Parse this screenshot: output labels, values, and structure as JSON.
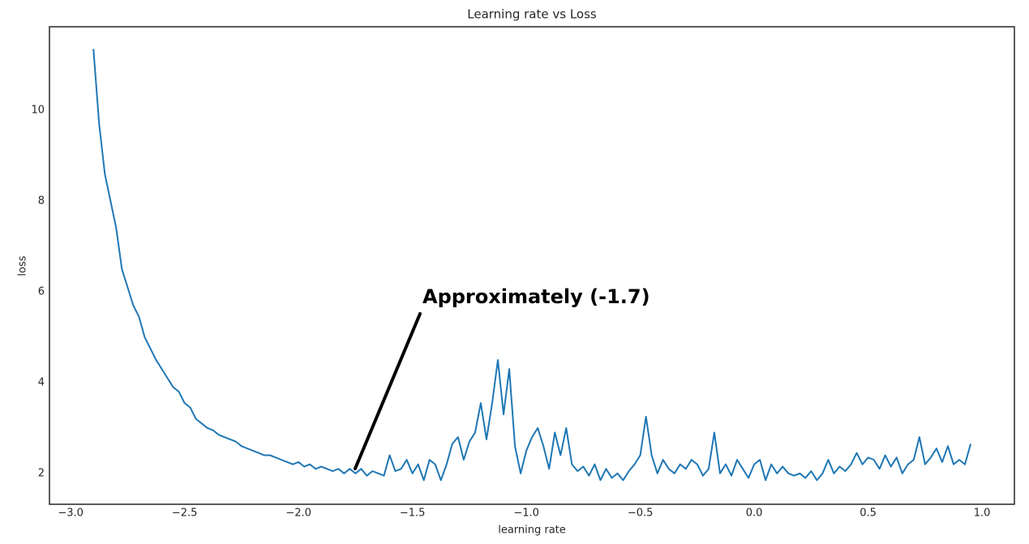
{
  "chart_data": {
    "type": "line",
    "title": "Learning rate vs Loss",
    "x_label": "learning rate",
    "y_label": "loss",
    "annotation": "Approximately (-1.7)",
    "x": [
      -2.9,
      -2.875,
      -2.85,
      -2.825,
      -2.8,
      -2.775,
      -2.75,
      -2.725,
      -2.7,
      -2.675,
      -2.65,
      -2.625,
      -2.6,
      -2.575,
      -2.55,
      -2.525,
      -2.5,
      -2.475,
      -2.45,
      -2.425,
      -2.4,
      -2.375,
      -2.35,
      -2.325,
      -2.3,
      -2.275,
      -2.25,
      -2.225,
      -2.2,
      -2.175,
      -2.15,
      -2.125,
      -2.1,
      -2.075,
      -2.05,
      -2.025,
      -2.0,
      -1.975,
      -1.95,
      -1.925,
      -1.9,
      -1.875,
      -1.85,
      -1.825,
      -1.8,
      -1.775,
      -1.75,
      -1.725,
      -1.7,
      -1.675,
      -1.65,
      -1.625,
      -1.6,
      -1.575,
      -1.55,
      -1.525,
      -1.5,
      -1.475,
      -1.45,
      -1.425,
      -1.4,
      -1.375,
      -1.35,
      -1.325,
      -1.3,
      -1.275,
      -1.25,
      -1.225,
      -1.2,
      -1.175,
      -1.15,
      -1.125,
      -1.1,
      -1.075,
      -1.05,
      -1.025,
      -1.0,
      -0.975,
      -0.95,
      -0.925,
      -0.9,
      -0.875,
      -0.85,
      -0.825,
      -0.8,
      -0.775,
      -0.75,
      -0.725,
      -0.7,
      -0.675,
      -0.65,
      -0.625,
      -0.6,
      -0.575,
      -0.55,
      -0.525,
      -0.5,
      -0.475,
      -0.45,
      -0.425,
      -0.4,
      -0.375,
      -0.35,
      -0.325,
      -0.3,
      -0.275,
      -0.25,
      -0.225,
      -0.2,
      -0.175,
      -0.15,
      -0.125,
      -0.1,
      -0.075,
      -0.05,
      -0.025,
      0.0,
      0.025,
      0.05,
      0.075,
      0.1,
      0.125,
      0.15,
      0.175,
      0.2,
      0.225,
      0.25,
      0.275,
      0.3,
      0.325,
      0.35,
      0.375,
      0.4,
      0.425,
      0.45,
      0.475,
      0.5,
      0.525,
      0.55,
      0.575,
      0.6,
      0.625,
      0.65,
      0.675,
      0.7,
      0.725,
      0.75,
      0.775,
      0.8,
      0.825,
      0.85,
      0.875,
      0.9,
      0.925,
      0.95
    ],
    "series": [
      {
        "color": "#1f77b4",
        "values": [
          11.35,
          9.7,
          8.6,
          8.0,
          7.4,
          6.5,
          6.1,
          5.7,
          5.45,
          5.0,
          4.75,
          4.5,
          4.3,
          4.1,
          3.9,
          3.8,
          3.55,
          3.45,
          3.2,
          3.1,
          3.0,
          2.95,
          2.85,
          2.8,
          2.75,
          2.7,
          2.6,
          2.55,
          2.5,
          2.45,
          2.4,
          2.4,
          2.35,
          2.3,
          2.25,
          2.2,
          2.25,
          2.15,
          2.2,
          2.1,
          2.15,
          2.1,
          2.05,
          2.1,
          2.0,
          2.1,
          2.0,
          2.1,
          1.95,
          2.05,
          2.0,
          1.95,
          2.4,
          2.05,
          2.1,
          2.3,
          2.0,
          2.2,
          1.85,
          2.3,
          2.2,
          1.85,
          2.2,
          2.65,
          2.8,
          2.3,
          2.7,
          2.9,
          3.55,
          2.75,
          3.55,
          4.5,
          3.3,
          4.3,
          2.6,
          2.0,
          2.5,
          2.8,
          3.0,
          2.6,
          2.1,
          2.9,
          2.4,
          3.0,
          2.2,
          2.05,
          2.15,
          1.95,
          2.2,
          1.85,
          2.1,
          1.9,
          2.0,
          1.85,
          2.05,
          2.2,
          2.4,
          3.25,
          2.4,
          2.0,
          2.3,
          2.1,
          2.0,
          2.2,
          2.1,
          2.3,
          2.2,
          1.95,
          2.1,
          2.9,
          2.0,
          2.2,
          1.95,
          2.3,
          2.1,
          1.9,
          2.2,
          2.3,
          1.85,
          2.2,
          2.0,
          2.15,
          2.0,
          1.95,
          2.0,
          1.9,
          2.05,
          1.85,
          2.0,
          2.3,
          2.0,
          2.15,
          2.05,
          2.2,
          2.45,
          2.2,
          2.35,
          2.3,
          2.1,
          2.4,
          2.15,
          2.35,
          2.0,
          2.2,
          2.3,
          2.8,
          2.2,
          2.35,
          2.55,
          2.25,
          2.6,
          2.2,
          2.3,
          2.2,
          2.65
        ]
      }
    ],
    "xlim": [
      -3.093,
      1.142
    ],
    "ylim": [
      1.32,
      11.84
    ],
    "xticks": [
      {
        "value": -3.0,
        "label": "−3.0"
      },
      {
        "value": -2.5,
        "label": "−2.5"
      },
      {
        "value": -2.0,
        "label": "−2.0"
      },
      {
        "value": -1.5,
        "label": "−1.5"
      },
      {
        "value": -1.0,
        "label": "−1.0"
      },
      {
        "value": -0.5,
        "label": "−0.5"
      },
      {
        "value": 0.0,
        "label": "0.0"
      },
      0.5,
      {
        "value": 1.0,
        "label": "1.0"
      }
    ],
    "yticks": [
      2,
      4,
      6,
      8,
      10
    ],
    "grid": false
  }
}
